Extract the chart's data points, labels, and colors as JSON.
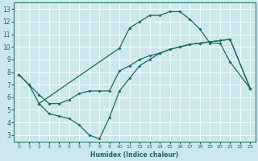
{
  "bg_color": "#cce8ec",
  "line_color": "#1a6b62",
  "grid_color": "#b0d8dc",
  "xlabel": "Humidex (Indice chaleur)",
  "xlim": [
    -0.5,
    23.5
  ],
  "ylim": [
    2.5,
    13.5
  ],
  "xticks": [
    0,
    1,
    2,
    3,
    4,
    5,
    6,
    7,
    8,
    9,
    10,
    11,
    12,
    13,
    14,
    15,
    16,
    17,
    18,
    19,
    20,
    21,
    22,
    23
  ],
  "yticks": [
    3,
    4,
    5,
    6,
    7,
    8,
    9,
    10,
    11,
    12,
    13
  ],
  "curve1_x": [
    0,
    1,
    2,
    3,
    4,
    5,
    6,
    7,
    8,
    9,
    10,
    11,
    12,
    13,
    14,
    15,
    16,
    17,
    18,
    19,
    20,
    21,
    23
  ],
  "curve1_y": [
    7.8,
    7.0,
    6.2,
    5.5,
    5.5,
    5.8,
    6.3,
    6.5,
    6.5,
    6.5,
    8.1,
    8.5,
    9.0,
    9.3,
    9.5,
    9.8,
    10.0,
    10.2,
    10.3,
    10.4,
    10.5,
    10.6,
    6.7
  ],
  "curve2_x": [
    0,
    1,
    2,
    10,
    11,
    12,
    13,
    14,
    15,
    16,
    17,
    18,
    19,
    20,
    21,
    23
  ],
  "curve2_y": [
    7.8,
    7.0,
    5.5,
    9.9,
    11.5,
    12.0,
    12.5,
    12.5,
    12.8,
    12.8,
    12.2,
    11.4,
    10.3,
    10.3,
    8.8,
    6.7
  ],
  "curve3_x": [
    2,
    3,
    4,
    5,
    6,
    7,
    8,
    9,
    10,
    11,
    12,
    13,
    14,
    15,
    16,
    17,
    18,
    19,
    20,
    21,
    23
  ],
  "curve3_y": [
    5.5,
    4.7,
    4.5,
    4.3,
    3.8,
    3.0,
    2.7,
    4.4,
    6.5,
    7.5,
    8.5,
    9.0,
    9.5,
    9.8,
    10.0,
    10.2,
    10.3,
    10.4,
    10.5,
    10.6,
    6.7
  ]
}
